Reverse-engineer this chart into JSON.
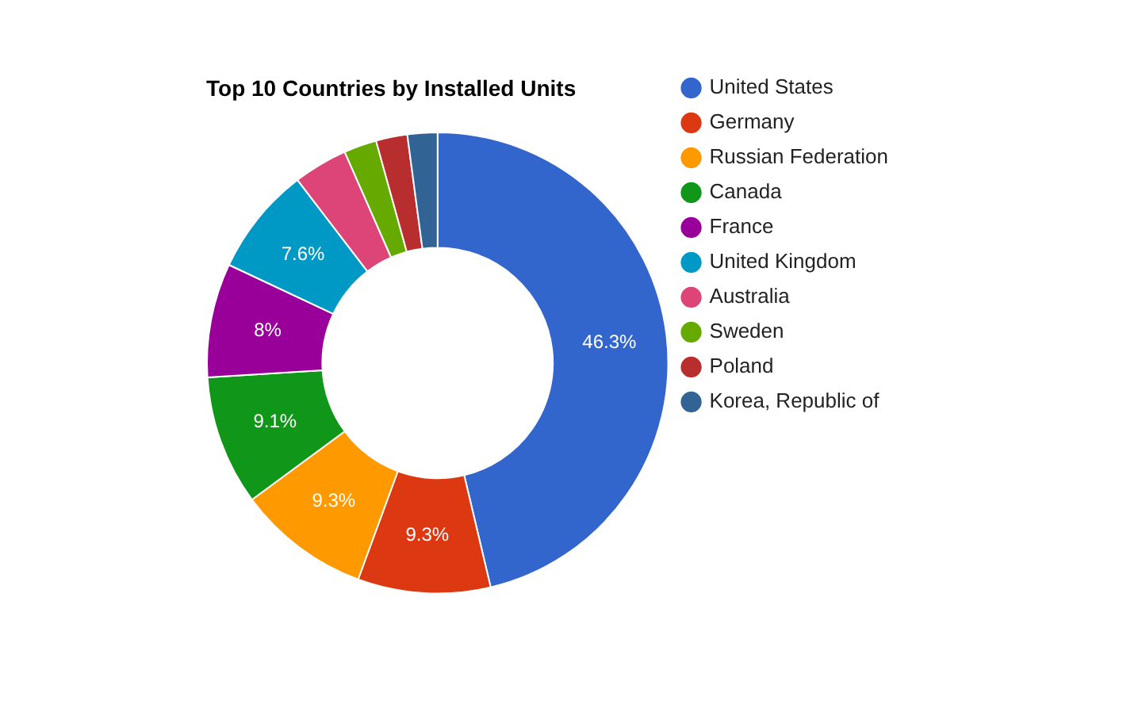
{
  "chart_data": {
    "type": "donut",
    "title": "Top 10 Countries by Installed Units",
    "categories": [
      "United States",
      "Germany",
      "Russian Federation",
      "Canada",
      "France",
      "United Kingdom",
      "Australia",
      "Sweden",
      "Poland",
      "Korea, Republic of"
    ],
    "values": [
      46.3,
      9.3,
      9.3,
      9.1,
      8,
      7.6,
      3.8,
      2.3,
      2.2,
      2.1
    ],
    "value_labels": [
      "46.3%",
      "9.3%",
      "9.3%",
      "9.1%",
      "8%",
      "7.6%",
      null,
      null,
      null,
      null
    ],
    "colors": [
      "#3366cc",
      "#dc3912",
      "#ff9900",
      "#109618",
      "#990099",
      "#0099c6",
      "#dd4477",
      "#66aa00",
      "#b82e2e",
      "#316395"
    ],
    "legend": "right"
  }
}
